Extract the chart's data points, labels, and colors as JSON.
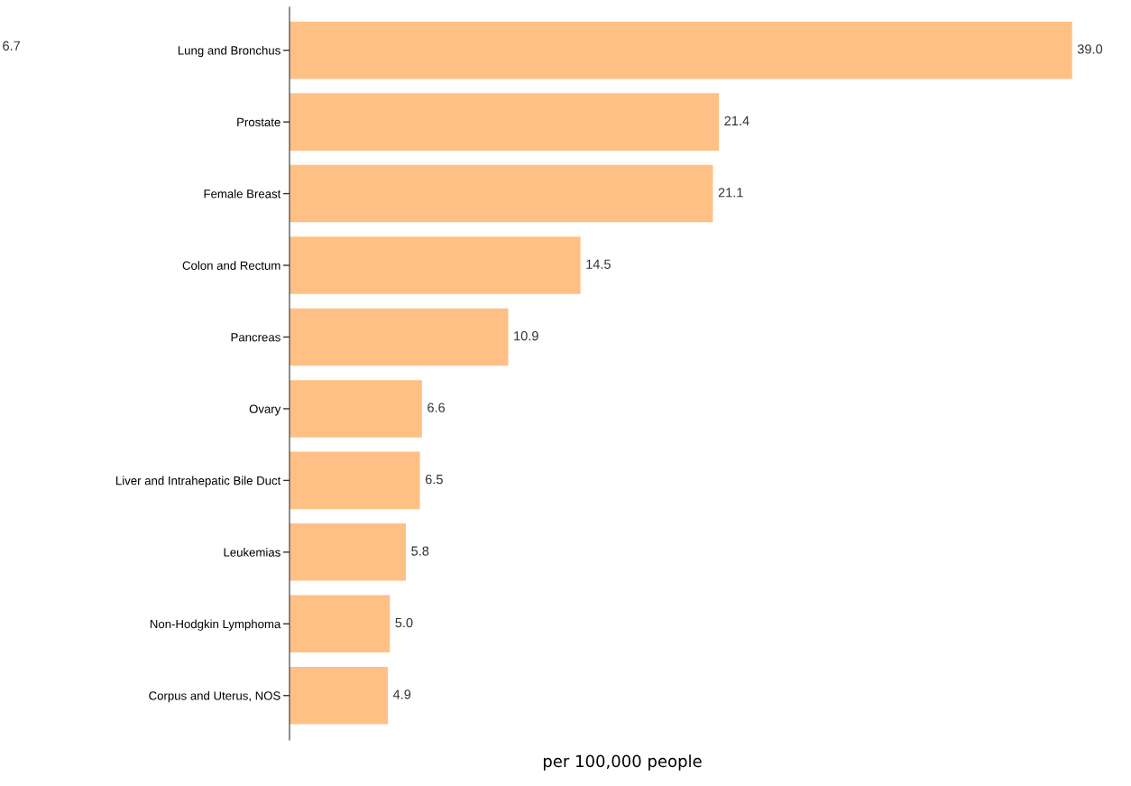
{
  "chart_data": {
    "type": "bar",
    "orientation": "horizontal",
    "xlabel": "per 100,000 people",
    "categories": [
      "Lung and Bronchus",
      "Prostate",
      "Female Breast",
      "Colon and Rectum",
      "Pancreas",
      "Ovary",
      "Liver and Intrahepatic Bile Duct",
      "Leukemias",
      "Non-Hodgkin Lymphoma",
      "Corpus and Uterus, NOS"
    ],
    "values": [
      39.0,
      21.4,
      21.1,
      14.5,
      10.9,
      6.6,
      6.5,
      5.8,
      5.0,
      4.9
    ],
    "value_labels": [
      "39.0",
      "21.4",
      "21.1",
      "14.5",
      "10.9",
      "6.6",
      "6.5",
      "5.8",
      "5.0",
      "4.9"
    ],
    "color": "#ffc085",
    "grid": false,
    "legend": false,
    "annotations": [
      "6.7"
    ]
  }
}
